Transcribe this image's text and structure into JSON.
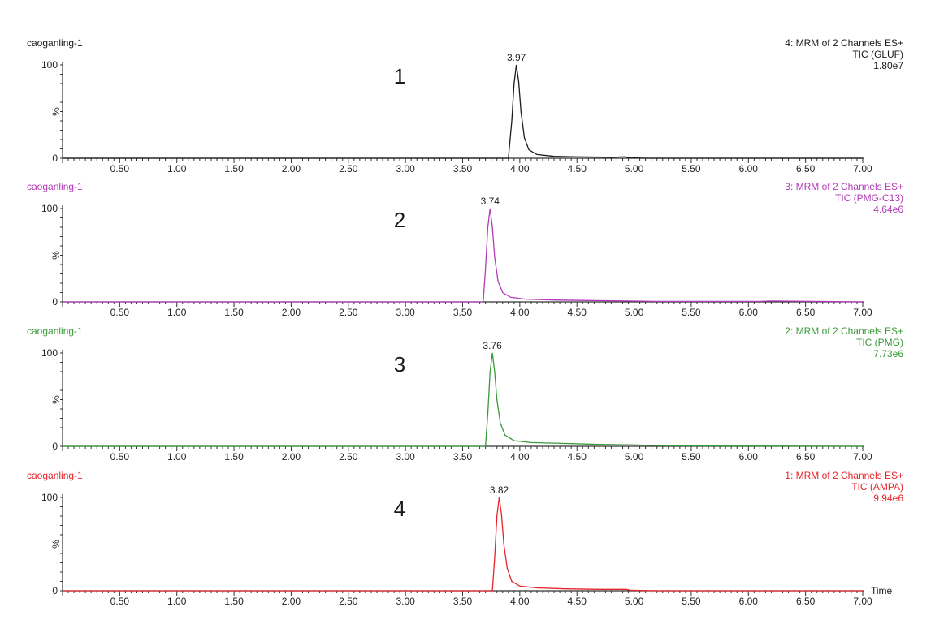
{
  "chart_data": [
    {
      "type": "line",
      "panel_number": "1",
      "sample": "caoganling-1",
      "header": [
        "4: MRM of 2 Channels ES+",
        "TIC (GLUF)",
        "1.80e7"
      ],
      "color": "#1a1a1a",
      "peak_label": "3.97",
      "xlim": [
        0.0,
        7.0
      ],
      "ylim": [
        0,
        100
      ],
      "ylabel": "%",
      "xlabel": "",
      "x_ticks": [
        "0.50",
        "1.00",
        "1.50",
        "2.00",
        "2.50",
        "3.00",
        "3.50",
        "4.00",
        "4.50",
        "5.00",
        "5.50",
        "6.00",
        "6.50",
        "7.00"
      ],
      "y_ticks": [
        "0",
        "100"
      ],
      "x": [
        0.0,
        3.0,
        3.9,
        3.93,
        3.95,
        3.97,
        3.99,
        4.01,
        4.04,
        4.08,
        4.15,
        4.3,
        4.5,
        4.8,
        4.92,
        4.95,
        5.1,
        7.0
      ],
      "y": [
        0,
        0,
        0,
        40,
        80,
        100,
        82,
        50,
        22,
        9,
        4,
        2,
        1.5,
        1,
        1.5,
        0.5,
        0,
        0
      ]
    },
    {
      "type": "line",
      "panel_number": "2",
      "sample": "caoganling-1",
      "header": [
        "3: MRM of 2 Channels ES+",
        "TIC (PMG-C13)",
        "4.64e6"
      ],
      "color": "#b23ab8",
      "peak_label": "3.74",
      "xlim": [
        0.0,
        7.0
      ],
      "ylim": [
        0,
        100
      ],
      "ylabel": "%",
      "xlabel": "",
      "x_ticks": [
        "0.50",
        "1.00",
        "1.50",
        "2.00",
        "2.50",
        "3.00",
        "3.50",
        "4.00",
        "4.50",
        "5.00",
        "5.50",
        "6.00",
        "6.50",
        "7.00"
      ],
      "y_ticks": [
        "0",
        "100"
      ],
      "x": [
        0.0,
        3.0,
        3.68,
        3.7,
        3.72,
        3.74,
        3.76,
        3.78,
        3.81,
        3.85,
        3.92,
        4.05,
        4.3,
        4.6,
        4.95,
        5.2,
        6.1,
        6.2,
        7.0
      ],
      "y": [
        0,
        0,
        0,
        35,
        80,
        100,
        80,
        48,
        22,
        10,
        5,
        3,
        2,
        1.5,
        1,
        0.5,
        0.5,
        1,
        0
      ]
    },
    {
      "type": "line",
      "panel_number": "3",
      "sample": "caoganling-1",
      "header": [
        "2: MRM of 2 Channels ES+",
        "TIC (PMG)",
        "7.73e6"
      ],
      "color": "#3a9a3a",
      "peak_label": "3.76",
      "xlim": [
        0.0,
        7.0
      ],
      "ylim": [
        0,
        100
      ],
      "ylabel": "%",
      "xlabel": "",
      "x_ticks": [
        "0.50",
        "1.00",
        "1.50",
        "2.00",
        "2.50",
        "3.00",
        "3.50",
        "4.00",
        "4.50",
        "5.00",
        "5.50",
        "6.00",
        "6.50",
        "7.00"
      ],
      "y_ticks": [
        "0",
        "100"
      ],
      "x": [
        0.0,
        3.0,
        3.7,
        3.72,
        3.74,
        3.76,
        3.78,
        3.8,
        3.83,
        3.87,
        3.95,
        4.1,
        4.4,
        4.7,
        5.0,
        5.3,
        7.0
      ],
      "y": [
        0,
        0,
        0,
        35,
        80,
        100,
        80,
        50,
        25,
        12,
        6,
        4,
        3,
        2,
        1.5,
        0.5,
        0
      ]
    },
    {
      "type": "line",
      "panel_number": "4",
      "sample": "caoganling-1",
      "header": [
        "1: MRM of 2 Channels ES+",
        "TIC (AMPA)",
        "9.94e6"
      ],
      "color": "#e8232a",
      "peak_label": "3.82",
      "xlim": [
        0.0,
        7.0
      ],
      "ylim": [
        0,
        100
      ],
      "ylabel": "%",
      "xlabel": "Time",
      "x_ticks": [
        "0.50",
        "1.00",
        "1.50",
        "2.00",
        "2.50",
        "3.00",
        "3.50",
        "4.00",
        "4.50",
        "5.00",
        "5.50",
        "6.00",
        "6.50",
        "7.00"
      ],
      "y_ticks": [
        "0",
        "100"
      ],
      "x": [
        0.0,
        3.0,
        3.76,
        3.78,
        3.8,
        3.82,
        3.84,
        3.86,
        3.89,
        3.93,
        4.0,
        4.15,
        4.4,
        4.7,
        4.93,
        4.97,
        5.2,
        7.0
      ],
      "y": [
        0,
        0,
        0,
        35,
        80,
        100,
        82,
        50,
        24,
        10,
        5,
        3,
        2,
        1.5,
        1.5,
        0.5,
        0,
        0
      ]
    }
  ]
}
